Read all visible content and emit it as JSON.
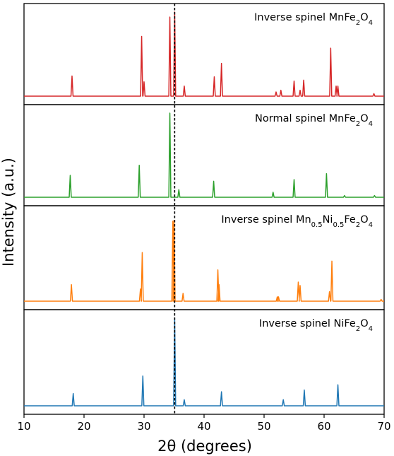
{
  "chart_data": {
    "type": "line",
    "title": "",
    "xlabel": "2θ (degrees)",
    "ylabel": "Intensity (a.u.)",
    "xlim": [
      10,
      70
    ],
    "xticks": [
      10,
      20,
      30,
      40,
      50,
      60,
      70
    ],
    "reference_line_x": 35.1,
    "panels": [
      {
        "label_parts": [
          [
            "Inverse spinel MnFe",
            "n"
          ],
          [
            "2",
            "sub"
          ],
          [
            "O",
            "n"
          ],
          [
            "4",
            "sub"
          ]
        ],
        "color": "#d62728",
        "peaks": [
          [
            18.0,
            0.24
          ],
          [
            29.6,
            0.71
          ],
          [
            30.0,
            0.17
          ],
          [
            34.3,
            0.94
          ],
          [
            35.1,
            1.0
          ],
          [
            36.7,
            0.12
          ],
          [
            41.7,
            0.23
          ],
          [
            42.9,
            0.39
          ],
          [
            52.0,
            0.05
          ],
          [
            52.8,
            0.07
          ],
          [
            55.0,
            0.18
          ],
          [
            56.0,
            0.07
          ],
          [
            56.6,
            0.19
          ],
          [
            61.1,
            0.57
          ],
          [
            62.0,
            0.12
          ],
          [
            62.3,
            0.12
          ],
          [
            68.3,
            0.03
          ]
        ]
      },
      {
        "label_parts": [
          [
            "Normal spinel MnFe",
            "n"
          ],
          [
            "2",
            "sub"
          ],
          [
            "O",
            "n"
          ],
          [
            "4",
            "sub"
          ]
        ],
        "color": "#2ca02c",
        "peaks": [
          [
            17.7,
            0.26
          ],
          [
            29.2,
            0.38
          ],
          [
            34.3,
            1.0
          ],
          [
            35.8,
            0.09
          ],
          [
            41.6,
            0.19
          ],
          [
            51.5,
            0.06
          ],
          [
            55.0,
            0.21
          ],
          [
            60.4,
            0.28
          ],
          [
            63.4,
            0.02
          ],
          [
            68.4,
            0.02
          ]
        ]
      },
      {
        "label_parts": [
          [
            "Inverse spinel Mn",
            "n"
          ],
          [
            "0.5",
            "sub"
          ],
          [
            "Ni",
            "n"
          ],
          [
            "0.5",
            "sub"
          ],
          [
            "Fe",
            "n"
          ],
          [
            "2",
            "sub"
          ],
          [
            "O",
            "n"
          ],
          [
            "4",
            "sub"
          ]
        ],
        "color": "#ff7f0e",
        "peaks": [
          [
            17.9,
            0.19
          ],
          [
            29.4,
            0.14
          ],
          [
            29.7,
            0.56
          ],
          [
            34.8,
            0.92
          ],
          [
            35.0,
            0.93
          ],
          [
            36.5,
            0.09
          ],
          [
            42.3,
            0.36
          ],
          [
            42.5,
            0.19
          ],
          [
            52.2,
            0.05
          ],
          [
            52.4,
            0.05
          ],
          [
            55.7,
            0.22
          ],
          [
            56.0,
            0.18
          ],
          [
            60.9,
            0.11
          ],
          [
            61.3,
            0.46
          ],
          [
            69.5,
            0.02
          ]
        ]
      },
      {
        "label_parts": [
          [
            "Inverse spinel NiFe",
            "n"
          ],
          [
            "2",
            "sub"
          ],
          [
            "O",
            "n"
          ],
          [
            "4",
            "sub"
          ]
        ],
        "color": "#1f77b4",
        "peaks": [
          [
            18.2,
            0.14
          ],
          [
            29.8,
            0.34
          ],
          [
            35.1,
            1.0
          ],
          [
            36.7,
            0.07
          ],
          [
            42.9,
            0.16
          ],
          [
            53.2,
            0.07
          ],
          [
            56.7,
            0.18
          ],
          [
            62.3,
            0.24
          ]
        ]
      }
    ]
  }
}
